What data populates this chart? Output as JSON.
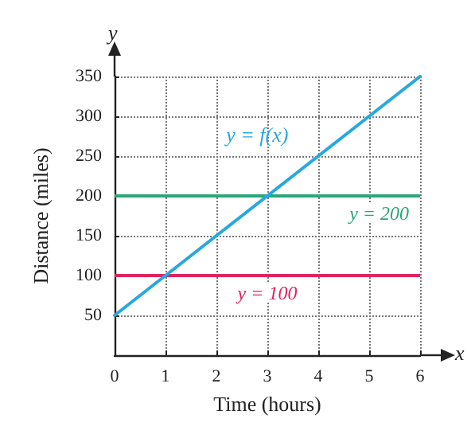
{
  "chart_data": {
    "type": "line",
    "xlabel": "Time (hours)",
    "ylabel": "Distance (miles)",
    "x": [
      0,
      6
    ],
    "series": [
      {
        "name": "y = f(x)",
        "color": "#29a8e0",
        "values": [
          50,
          350
        ]
      }
    ],
    "xlim": [
      0,
      6
    ],
    "xticks": [
      0,
      1,
      2,
      3,
      4,
      5,
      6
    ],
    "ylim": [
      0,
      350
    ],
    "yticks": [
      {
        "value": 0,
        "label": null
      },
      50,
      100,
      150,
      200,
      250,
      300,
      350
    ],
    "ref_lines": [
      {
        "axis": "y",
        "value": 200,
        "label": "y = 200",
        "color": "#2aa877"
      },
      {
        "axis": "y",
        "value": 100,
        "label": "y = 100",
        "color": "#e0245e"
      }
    ],
    "annotations": [
      "x",
      "y"
    ],
    "grid": true,
    "marker": "none",
    "line_style": "solid",
    "legend": false
  }
}
